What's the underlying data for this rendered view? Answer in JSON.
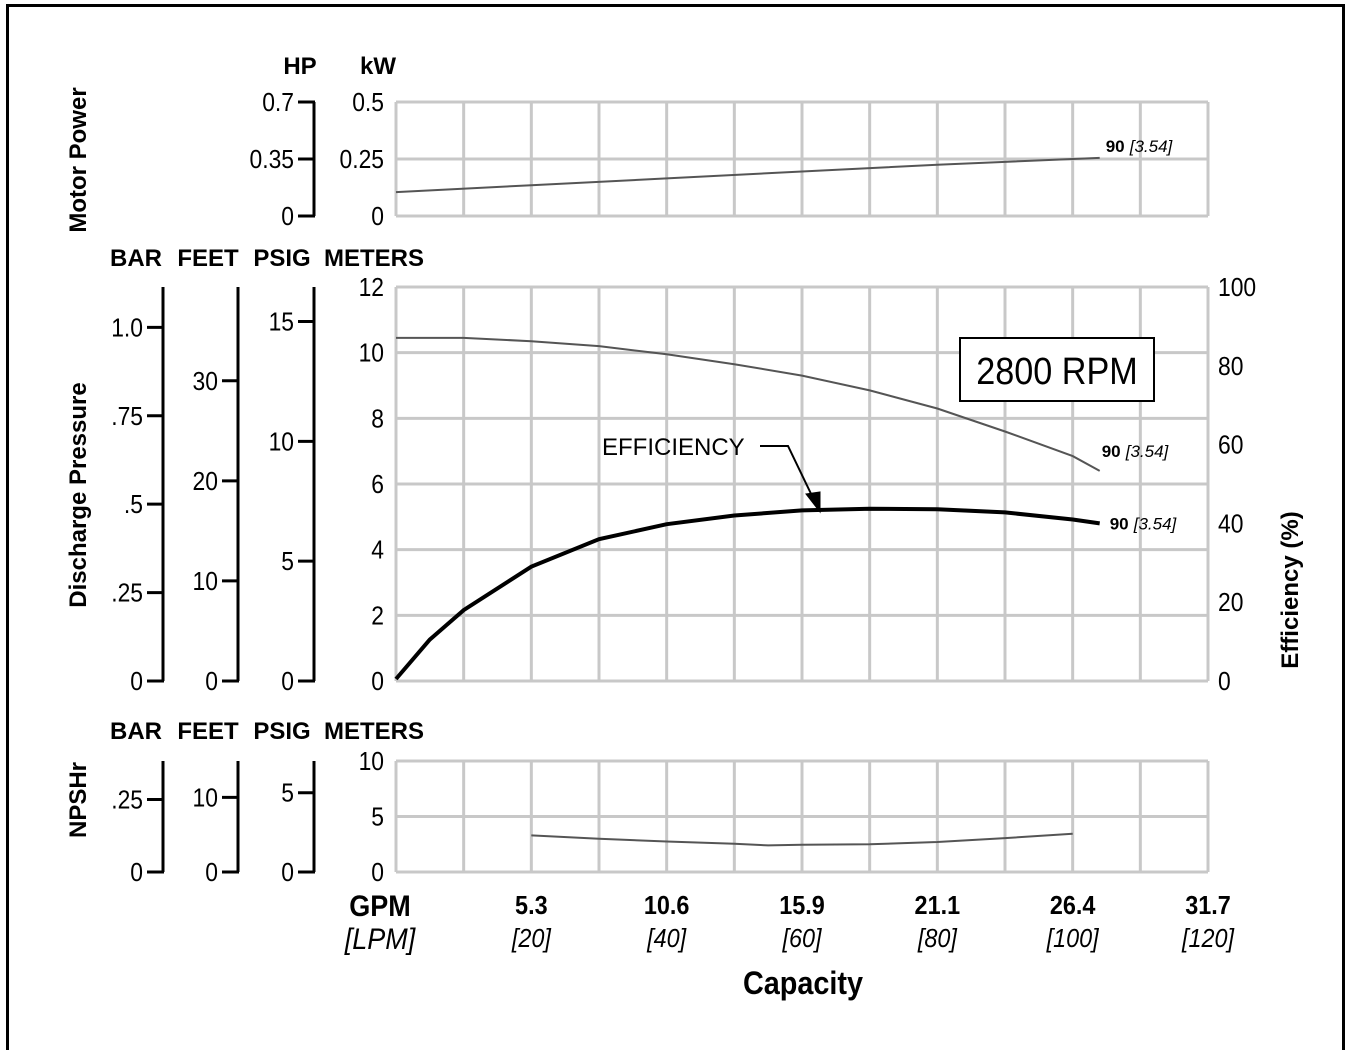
{
  "chart_data": {
    "type": "line",
    "title": "",
    "rpm_label": "2800 RPM",
    "x_axis": {
      "title": "Capacity",
      "unit_primary": "GPM",
      "unit_secondary": "[LPM]",
      "lpm_range": [
        0,
        120
      ],
      "ticks": [
        {
          "lpm": 20,
          "gpm": "5.3",
          "lpm_label": "[20]"
        },
        {
          "lpm": 40,
          "gpm": "10.6",
          "lpm_label": "[40]"
        },
        {
          "lpm": 60,
          "gpm": "15.9",
          "lpm_label": "[60]"
        },
        {
          "lpm": 80,
          "gpm": "21.1",
          "lpm_label": "[80]"
        },
        {
          "lpm": 100,
          "gpm": "26.4",
          "lpm_label": "[100]"
        },
        {
          "lpm": 120,
          "gpm": "31.7",
          "lpm_label": "[120]"
        }
      ]
    },
    "panels": {
      "power": {
        "side_label": "Motor Power",
        "units": [
          "HP",
          "kW"
        ],
        "ylim_kw": [
          0,
          0.5
        ],
        "grid_rows": 2,
        "axes": [
          {
            "unit": "HP",
            "ticks": [
              {
                "v": 0,
                "label": "0"
              },
              {
                "v": 0.35,
                "label": "0.35"
              },
              {
                "v": 0.7,
                "label": "0.7"
              }
            ]
          },
          {
            "unit": "kW",
            "ticks": [
              {
                "v": 0,
                "label": "0"
              },
              {
                "v": 0.25,
                "label": "0.25"
              },
              {
                "v": 0.5,
                "label": "0.5"
              }
            ]
          }
        ],
        "series": [
          {
            "label_bold": "90",
            "label_italic": "[3.54]",
            "points": [
              [
                0,
                0.105
              ],
              [
                20,
                0.135
              ],
              [
                40,
                0.165
              ],
              [
                60,
                0.195
              ],
              [
                80,
                0.225
              ],
              [
                100,
                0.25
              ],
              [
                104,
                0.255
              ]
            ]
          }
        ]
      },
      "pressure": {
        "side_label": "Discharge Pressure",
        "units": [
          "BAR",
          "FEET",
          "PSIG",
          "METERS"
        ],
        "ylim_meters": [
          0,
          12
        ],
        "grid_rows": 6,
        "axes": [
          {
            "unit": "BAR",
            "ticks": [
              {
                "v": 0,
                "label": "0"
              },
              {
                "v": 0.25,
                "label": ".25"
              },
              {
                "v": 0.5,
                "label": ".5"
              },
              {
                "v": 0.75,
                "label": ".75"
              },
              {
                "v": 1.0,
                "label": "1.0"
              }
            ]
          },
          {
            "unit": "FEET",
            "ticks": [
              {
                "v": 0,
                "label": "0"
              },
              {
                "v": 10,
                "label": "10"
              },
              {
                "v": 20,
                "label": "20"
              },
              {
                "v": 30,
                "label": "30"
              }
            ]
          },
          {
            "unit": "PSIG",
            "ticks": [
              {
                "v": 0,
                "label": "0"
              },
              {
                "v": 5,
                "label": "5"
              },
              {
                "v": 10,
                "label": "10"
              },
              {
                "v": 15,
                "label": "15"
              }
            ]
          },
          {
            "unit": "METERS",
            "ticks": [
              {
                "v": 0,
                "label": "0"
              },
              {
                "v": 2,
                "label": "2"
              },
              {
                "v": 4,
                "label": "4"
              },
              {
                "v": 6,
                "label": "6"
              },
              {
                "v": 8,
                "label": "8"
              },
              {
                "v": 10,
                "label": "10"
              },
              {
                "v": 12,
                "label": "12"
              }
            ]
          }
        ],
        "right_axis": {
          "label": "Efficiency (%)",
          "ylim": [
            0,
            100
          ],
          "ticks": [
            {
              "v": 0,
              "label": "0"
            },
            {
              "v": 20,
              "label": "20"
            },
            {
              "v": 40,
              "label": "40"
            },
            {
              "v": 60,
              "label": "60"
            },
            {
              "v": 80,
              "label": "80"
            },
            {
              "v": 100,
              "label": "100"
            }
          ]
        },
        "series": [
          {
            "kind": "head",
            "label_bold": "90",
            "label_italic": "[3.54]",
            "points_meters": [
              [
                0,
                10.45
              ],
              [
                10,
                10.45
              ],
              [
                20,
                10.35
              ],
              [
                30,
                10.2
              ],
              [
                40,
                9.95
              ],
              [
                50,
                9.65
              ],
              [
                60,
                9.3
              ],
              [
                70,
                8.85
              ],
              [
                80,
                8.3
              ],
              [
                90,
                7.6
              ],
              [
                100,
                6.85
              ],
              [
                104,
                6.4
              ]
            ]
          },
          {
            "kind": "efficiency",
            "label_bold": "90",
            "label_italic": "[3.54]",
            "annotation": "EFFICIENCY",
            "points_pct": [
              [
                0,
                0.5
              ],
              [
                5,
                10.5
              ],
              [
                10,
                18
              ],
              [
                20,
                29
              ],
              [
                30,
                36
              ],
              [
                40,
                39.8
              ],
              [
                50,
                42
              ],
              [
                60,
                43.3
              ],
              [
                70,
                43.7
              ],
              [
                80,
                43.6
              ],
              [
                90,
                42.8
              ],
              [
                100,
                41
              ],
              [
                104,
                40
              ]
            ]
          }
        ]
      },
      "npshr": {
        "side_label": "NPSHr",
        "units": [
          "BAR",
          "FEET",
          "PSIG",
          "METERS"
        ],
        "ylim_meters": [
          0,
          10
        ],
        "grid_rows": 2,
        "axes": [
          {
            "unit": "BAR",
            "ticks": [
              {
                "v": 0,
                "label": "0"
              },
              {
                "v": 0.25,
                "label": ".25"
              }
            ]
          },
          {
            "unit": "FEET",
            "ticks": [
              {
                "v": 0,
                "label": "0"
              },
              {
                "v": 10,
                "label": "10"
              }
            ]
          },
          {
            "unit": "PSIG",
            "ticks": [
              {
                "v": 0,
                "label": "0"
              },
              {
                "v": 5,
                "label": "5"
              }
            ]
          },
          {
            "unit": "METERS",
            "ticks": [
              {
                "v": 0,
                "label": "0"
              },
              {
                "v": 5,
                "label": "5"
              },
              {
                "v": 10,
                "label": "10"
              }
            ]
          }
        ],
        "series": [
          {
            "points_meters": [
              [
                20,
                3.3
              ],
              [
                30,
                3.0
              ],
              [
                40,
                2.75
              ],
              [
                50,
                2.55
              ],
              [
                55,
                2.4
              ],
              [
                60,
                2.45
              ],
              [
                70,
                2.5
              ],
              [
                80,
                2.7
              ],
              [
                90,
                3.05
              ],
              [
                100,
                3.45
              ]
            ]
          }
        ]
      }
    }
  }
}
